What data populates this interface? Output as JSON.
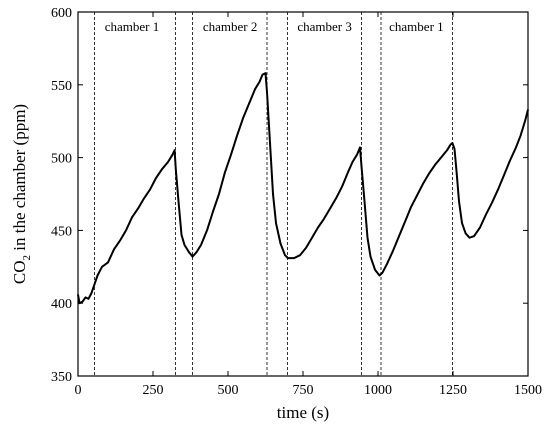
{
  "chart_data": {
    "type": "line",
    "title": "",
    "xlabel": "time (s)",
    "ylabel_main": "CO",
    "ylabel_sub": "2",
    "ylabel_rest": " in the chamber (ppm)",
    "xlim": [
      0,
      1500
    ],
    "ylim": [
      350,
      600
    ],
    "xticks": [
      0,
      250,
      500,
      750,
      1000,
      1250,
      1500
    ],
    "yticks": [
      350,
      400,
      450,
      500,
      550,
      600
    ],
    "grid": false,
    "dividers": [
      55,
      325,
      382,
      630,
      698,
      945,
      1010,
      1248
    ],
    "annotations": [
      {
        "text": "chamber 1",
        "x": 180,
        "y": 587
      },
      {
        "text": "chamber 2",
        "x": 507,
        "y": 587
      },
      {
        "text": "chamber 3",
        "x": 822,
        "y": 587
      },
      {
        "text": "chamber 1",
        "x": 1128,
        "y": 587
      }
    ],
    "series": [
      {
        "x": [
          0,
          5,
          15,
          25,
          35,
          45,
          55,
          65,
          80,
          100,
          120,
          140,
          160,
          180,
          200,
          220,
          240,
          260,
          280,
          300,
          315,
          322,
          326,
          335,
          345,
          355,
          370,
          382,
          395,
          410,
          430,
          450,
          470,
          490,
          510,
          530,
          550,
          570,
          590,
          605,
          615,
          625,
          630,
          640,
          650,
          660,
          675,
          690,
          700,
          720,
          740,
          760,
          780,
          800,
          820,
          840,
          860,
          880,
          900,
          915,
          930,
          940,
          945,
          955,
          965,
          975,
          990,
          1005,
          1015,
          1030,
          1050,
          1070,
          1090,
          1110,
          1130,
          1150,
          1170,
          1190,
          1210,
          1230,
          1242,
          1248,
          1255,
          1262,
          1270,
          1280,
          1292,
          1305,
          1320,
          1340,
          1360,
          1380,
          1400,
          1420,
          1440,
          1460,
          1475,
          1490,
          1500
        ],
        "y": [
          406,
          400,
          401,
          404,
          403,
          407,
          413,
          419,
          425,
          428,
          437,
          443,
          450,
          459,
          465,
          472,
          478,
          486,
          492,
          497,
          502,
          505,
          492,
          470,
          447,
          440,
          435,
          432,
          435,
          440,
          450,
          463,
          475,
          490,
          502,
          515,
          527,
          537,
          547,
          552,
          557,
          558,
          545,
          510,
          475,
          455,
          441,
          433,
          431,
          431,
          433,
          438,
          445,
          452,
          458,
          465,
          472,
          480,
          490,
          497,
          502,
          507,
          494,
          470,
          445,
          432,
          423,
          419,
          421,
          427,
          436,
          446,
          456,
          466,
          474,
          482,
          489,
          495,
          500,
          505,
          509,
          510,
          506,
          490,
          470,
          455,
          448,
          445,
          446,
          452,
          461,
          469,
          478,
          488,
          498,
          507,
          515,
          525,
          533
        ]
      }
    ]
  }
}
